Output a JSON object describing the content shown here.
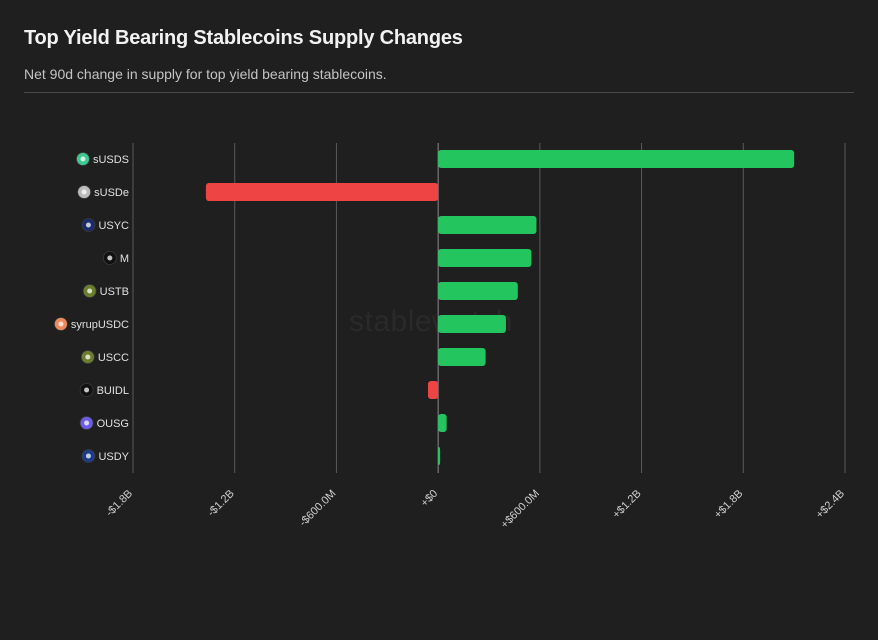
{
  "header": {
    "title": "Top Yield Bearing Stablecoins Supply Changes",
    "subtitle": "Net 90d change in supply for top yield bearing stablecoins."
  },
  "watermark": "stablewatch",
  "colors": {
    "background": "#1f1f1f",
    "positive": "#22c55e",
    "negative": "#ef4444",
    "grid": "#5a5a5a",
    "zero_line": "#8a8a8a",
    "text": "#e0e0e0",
    "tick_text": "#cfcfcf"
  },
  "chart_data": {
    "type": "bar",
    "orientation": "horizontal",
    "title": "Top Yield Bearing Stablecoins Supply Changes",
    "subtitle": "Net 90d change in supply for top yield bearing stablecoins.",
    "xlabel": "",
    "ylabel": "",
    "xlim": [
      -1800000000,
      2400000000
    ],
    "xticks": [
      -1800000000,
      -1200000000,
      -600000000,
      0,
      600000000,
      1200000000,
      1800000000,
      2400000000
    ],
    "xtick_labels": [
      "-$1.8B",
      "-$1.2B",
      "-$600.0M",
      "+$0",
      "+$600.0M",
      "+$1.2B",
      "+$1.8B",
      "+$2.4B"
    ],
    "grid": true,
    "categories": [
      "sUSDS",
      "sUSDe",
      "USYC",
      "M",
      "USTB",
      "syrupUSDC",
      "USCC",
      "BUIDL",
      "OUSG",
      "USDY"
    ],
    "icons": [
      "susds-icon",
      "susde-icon",
      "usyc-icon",
      "m-icon",
      "ustb-icon",
      "syrupusdc-icon",
      "uscc-icon",
      "buidl-icon",
      "ousg-icon",
      "usdy-icon"
    ],
    "icon_colors": [
      "#3ec78f",
      "#bdbdbd",
      "#1a2a6c",
      "#111111",
      "#6b7d2e",
      "#f08a5d",
      "#6b7d2e",
      "#111111",
      "#6c5ce7",
      "#1e3a8a"
    ],
    "values": [
      2100000000,
      -1370000000,
      580000000,
      550000000,
      470000000,
      400000000,
      280000000,
      -60000000,
      50000000,
      10000000
    ]
  }
}
